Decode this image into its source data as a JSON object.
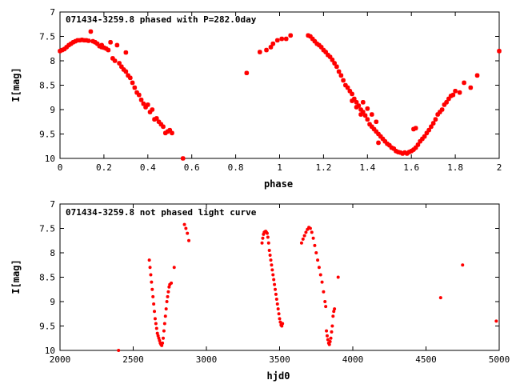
{
  "chart_data": [
    {
      "type": "scatter",
      "title": "071434-3259.8 phased with P=282.0day",
      "xlabel": "phase",
      "ylabel": "I[mag]",
      "xlim": [
        0,
        2
      ],
      "ylim": [
        10,
        7
      ],
      "y_inverted": true,
      "grid": false,
      "legend": "none",
      "marker_color": "#ff0000",
      "xticks": [
        0,
        0.2,
        0.4,
        0.6,
        0.8,
        1,
        1.2,
        1.4,
        1.6,
        1.8,
        2
      ],
      "xtick_labels": [
        "0",
        "0.2",
        "0.4",
        "0.6",
        "0.8",
        "1",
        "1.2",
        "1.4",
        "1.6",
        "1.8",
        "2"
      ],
      "yticks": [
        7,
        7.5,
        8,
        8.5,
        9,
        9.5,
        10
      ],
      "ytick_labels": [
        "7",
        "7.5",
        "8",
        "8.5",
        "9",
        "9.5",
        "10"
      ],
      "points": [
        [
          0.0,
          7.8
        ],
        [
          0.01,
          7.78
        ],
        [
          0.02,
          7.76
        ],
        [
          0.03,
          7.72
        ],
        [
          0.04,
          7.68
        ],
        [
          0.05,
          7.65
        ],
        [
          0.06,
          7.62
        ],
        [
          0.07,
          7.6
        ],
        [
          0.08,
          7.58
        ],
        [
          0.09,
          7.58
        ],
        [
          0.1,
          7.57
        ],
        [
          0.11,
          7.58
        ],
        [
          0.12,
          7.58
        ],
        [
          0.13,
          7.59
        ],
        [
          0.14,
          7.4
        ],
        [
          0.15,
          7.6
        ],
        [
          0.16,
          7.62
        ],
        [
          0.17,
          7.65
        ],
        [
          0.18,
          7.7
        ],
        [
          0.19,
          7.72
        ],
        [
          0.2,
          7.73
        ],
        [
          0.19,
          7.68
        ],
        [
          0.21,
          7.75
        ],
        [
          0.22,
          7.78
        ],
        [
          0.23,
          7.62
        ],
        [
          0.24,
          7.95
        ],
        [
          0.25,
          8.0
        ],
        [
          0.26,
          7.68
        ],
        [
          0.27,
          8.05
        ],
        [
          0.28,
          8.12
        ],
        [
          0.29,
          8.18
        ],
        [
          0.3,
          8.22
        ],
        [
          0.31,
          8.3
        ],
        [
          0.32,
          8.35
        ],
        [
          0.33,
          8.45
        ],
        [
          0.34,
          8.55
        ],
        [
          0.35,
          8.65
        ],
        [
          0.36,
          8.7
        ],
        [
          0.37,
          8.8
        ],
        [
          0.38,
          8.88
        ],
        [
          0.39,
          8.95
        ],
        [
          0.4,
          8.9
        ],
        [
          0.41,
          9.05
        ],
        [
          0.42,
          9.0
        ],
        [
          0.43,
          9.2
        ],
        [
          0.44,
          9.18
        ],
        [
          0.45,
          9.25
        ],
        [
          0.46,
          9.3
        ],
        [
          0.47,
          9.35
        ],
        [
          0.48,
          9.48
        ],
        [
          0.49,
          9.45
        ],
        [
          0.5,
          9.42
        ],
        [
          0.51,
          9.48
        ],
        [
          0.3,
          7.83
        ],
        [
          0.56,
          10.0
        ],
        [
          0.85,
          8.25
        ],
        [
          0.91,
          7.82
        ],
        [
          0.94,
          7.78
        ],
        [
          0.96,
          7.72
        ],
        [
          0.97,
          7.65
        ],
        [
          0.99,
          7.58
        ],
        [
          1.01,
          7.55
        ],
        [
          1.03,
          7.55
        ],
        [
          1.05,
          7.48
        ],
        [
          1.13,
          7.48
        ],
        [
          1.14,
          7.5
        ],
        [
          1.15,
          7.55
        ],
        [
          1.16,
          7.6
        ],
        [
          1.17,
          7.65
        ],
        [
          1.18,
          7.68
        ],
        [
          1.19,
          7.72
        ],
        [
          1.2,
          7.78
        ],
        [
          1.21,
          7.82
        ],
        [
          1.22,
          7.88
        ],
        [
          1.23,
          7.92
        ],
        [
          1.24,
          7.98
        ],
        [
          1.25,
          8.05
        ],
        [
          1.26,
          8.12
        ],
        [
          1.27,
          8.22
        ],
        [
          1.28,
          8.3
        ],
        [
          1.29,
          8.4
        ],
        [
          1.3,
          8.5
        ],
        [
          1.31,
          8.55
        ],
        [
          1.32,
          8.62
        ],
        [
          1.33,
          8.68
        ],
        [
          1.34,
          8.78
        ],
        [
          1.35,
          8.85
        ],
        [
          1.36,
          8.92
        ],
        [
          1.37,
          9.0
        ],
        [
          1.38,
          9.05
        ],
        [
          1.39,
          9.12
        ],
        [
          1.4,
          9.2
        ],
        [
          1.41,
          9.3
        ],
        [
          1.42,
          9.35
        ],
        [
          1.43,
          9.4
        ],
        [
          1.44,
          9.45
        ],
        [
          1.45,
          9.5
        ],
        [
          1.46,
          9.55
        ],
        [
          1.47,
          9.6
        ],
        [
          1.48,
          9.65
        ],
        [
          1.49,
          9.7
        ],
        [
          1.5,
          9.73
        ],
        [
          1.51,
          9.78
        ],
        [
          1.52,
          9.8
        ],
        [
          1.53,
          9.85
        ],
        [
          1.54,
          9.87
        ],
        [
          1.55,
          9.88
        ],
        [
          1.56,
          9.9
        ],
        [
          1.57,
          9.88
        ],
        [
          1.58,
          9.9
        ],
        [
          1.59,
          9.87
        ],
        [
          1.6,
          9.85
        ],
        [
          1.61,
          9.82
        ],
        [
          1.62,
          9.78
        ],
        [
          1.63,
          9.72
        ],
        [
          1.64,
          9.65
        ],
        [
          1.65,
          9.6
        ],
        [
          1.66,
          9.55
        ],
        [
          1.67,
          9.48
        ],
        [
          1.68,
          9.42
        ],
        [
          1.69,
          9.35
        ],
        [
          1.7,
          9.28
        ],
        [
          1.71,
          9.2
        ],
        [
          1.72,
          9.1
        ],
        [
          1.73,
          9.05
        ],
        [
          1.74,
          9.0
        ],
        [
          1.75,
          8.9
        ],
        [
          1.76,
          8.85
        ],
        [
          1.77,
          8.78
        ],
        [
          1.78,
          8.72
        ],
        [
          1.79,
          8.7
        ],
        [
          1.8,
          8.62
        ],
        [
          1.82,
          8.65
        ],
        [
          1.84,
          8.45
        ],
        [
          1.87,
          8.55
        ],
        [
          1.9,
          8.3
        ],
        [
          1.61,
          9.4
        ],
        [
          1.62,
          9.38
        ],
        [
          1.45,
          9.68
        ],
        [
          1.38,
          8.85
        ],
        [
          1.4,
          8.98
        ],
        [
          1.42,
          9.1
        ],
        [
          1.44,
          9.25
        ],
        [
          1.33,
          8.82
        ],
        [
          1.35,
          8.95
        ],
        [
          1.37,
          9.1
        ],
        [
          2.0,
          7.8
        ]
      ]
    },
    {
      "type": "scatter",
      "title": "071434-3259.8 not phased light curve",
      "xlabel": "hjd0",
      "ylabel": "I[mag]",
      "xlim": [
        2000,
        5000
      ],
      "ylim": [
        10,
        7
      ],
      "y_inverted": true,
      "grid": false,
      "legend": "none",
      "marker_color": "#ff0000",
      "xticks": [
        2000,
        2500,
        3000,
        3500,
        4000,
        4500,
        5000
      ],
      "xtick_labels": [
        "2000",
        "2500",
        "3000",
        "3500",
        "4000",
        "4500",
        "5000"
      ],
      "yticks": [
        7,
        7.5,
        8,
        8.5,
        9,
        9.5,
        10
      ],
      "ytick_labels": [
        "7",
        "7.5",
        "8",
        "8.5",
        "9",
        "9.5",
        "10"
      ],
      "points": [
        [
          2400,
          10.0
        ],
        [
          2610,
          8.15
        ],
        [
          2615,
          8.3
        ],
        [
          2620,
          8.45
        ],
        [
          2625,
          8.6
        ],
        [
          2630,
          8.75
        ],
        [
          2635,
          8.9
        ],
        [
          2640,
          9.05
        ],
        [
          2645,
          9.2
        ],
        [
          2650,
          9.35
        ],
        [
          2655,
          9.45
        ],
        [
          2660,
          9.55
        ],
        [
          2665,
          9.65
        ],
        [
          2670,
          9.7
        ],
        [
          2675,
          9.75
        ],
        [
          2680,
          9.8
        ],
        [
          2685,
          9.85
        ],
        [
          2690,
          9.88
        ],
        [
          2695,
          9.9
        ],
        [
          2700,
          9.85
        ],
        [
          2705,
          9.75
        ],
        [
          2710,
          9.6
        ],
        [
          2715,
          9.45
        ],
        [
          2720,
          9.3
        ],
        [
          2725,
          9.15
        ],
        [
          2730,
          9.0
        ],
        [
          2735,
          8.9
        ],
        [
          2740,
          8.8
        ],
        [
          2745,
          8.7
        ],
        [
          2750,
          8.65
        ],
        [
          2760,
          8.62
        ],
        [
          2780,
          8.3
        ],
        [
          2850,
          7.42
        ],
        [
          2860,
          7.5
        ],
        [
          2870,
          7.6
        ],
        [
          2880,
          7.75
        ],
        [
          3380,
          7.8
        ],
        [
          3385,
          7.7
        ],
        [
          3390,
          7.62
        ],
        [
          3395,
          7.58
        ],
        [
          3400,
          7.57
        ],
        [
          3405,
          7.56
        ],
        [
          3410,
          7.58
        ],
        [
          3415,
          7.6
        ],
        [
          3420,
          7.68
        ],
        [
          3425,
          7.8
        ],
        [
          3430,
          7.95
        ],
        [
          3435,
          8.05
        ],
        [
          3440,
          8.15
        ],
        [
          3445,
          8.25
        ],
        [
          3450,
          8.35
        ],
        [
          3455,
          8.45
        ],
        [
          3460,
          8.55
        ],
        [
          3465,
          8.65
        ],
        [
          3470,
          8.75
        ],
        [
          3475,
          8.85
        ],
        [
          3480,
          8.95
        ],
        [
          3485,
          9.05
        ],
        [
          3490,
          9.15
        ],
        [
          3495,
          9.25
        ],
        [
          3500,
          9.35
        ],
        [
          3505,
          9.42
        ],
        [
          3510,
          9.48
        ],
        [
          3515,
          9.5
        ],
        [
          3520,
          9.45
        ],
        [
          3650,
          7.8
        ],
        [
          3660,
          7.72
        ],
        [
          3670,
          7.65
        ],
        [
          3680,
          7.58
        ],
        [
          3690,
          7.52
        ],
        [
          3700,
          7.48
        ],
        [
          3710,
          7.5
        ],
        [
          3720,
          7.58
        ],
        [
          3730,
          7.7
        ],
        [
          3740,
          7.85
        ],
        [
          3750,
          8.0
        ],
        [
          3760,
          8.15
        ],
        [
          3770,
          8.3
        ],
        [
          3780,
          8.45
        ],
        [
          3790,
          8.6
        ],
        [
          3800,
          8.8
        ],
        [
          3810,
          9.0
        ],
        [
          3815,
          9.1
        ],
        [
          3820,
          9.6
        ],
        [
          3825,
          9.7
        ],
        [
          3830,
          9.78
        ],
        [
          3835,
          9.85
        ],
        [
          3840,
          9.88
        ],
        [
          3845,
          9.82
        ],
        [
          3850,
          9.75
        ],
        [
          3855,
          9.62
        ],
        [
          3860,
          9.5
        ],
        [
          3865,
          9.3
        ],
        [
          3870,
          9.2
        ],
        [
          3875,
          9.15
        ],
        [
          3900,
          8.5
        ],
        [
          4600,
          8.92
        ],
        [
          4750,
          8.25
        ],
        [
          4980,
          9.4
        ]
      ]
    }
  ]
}
